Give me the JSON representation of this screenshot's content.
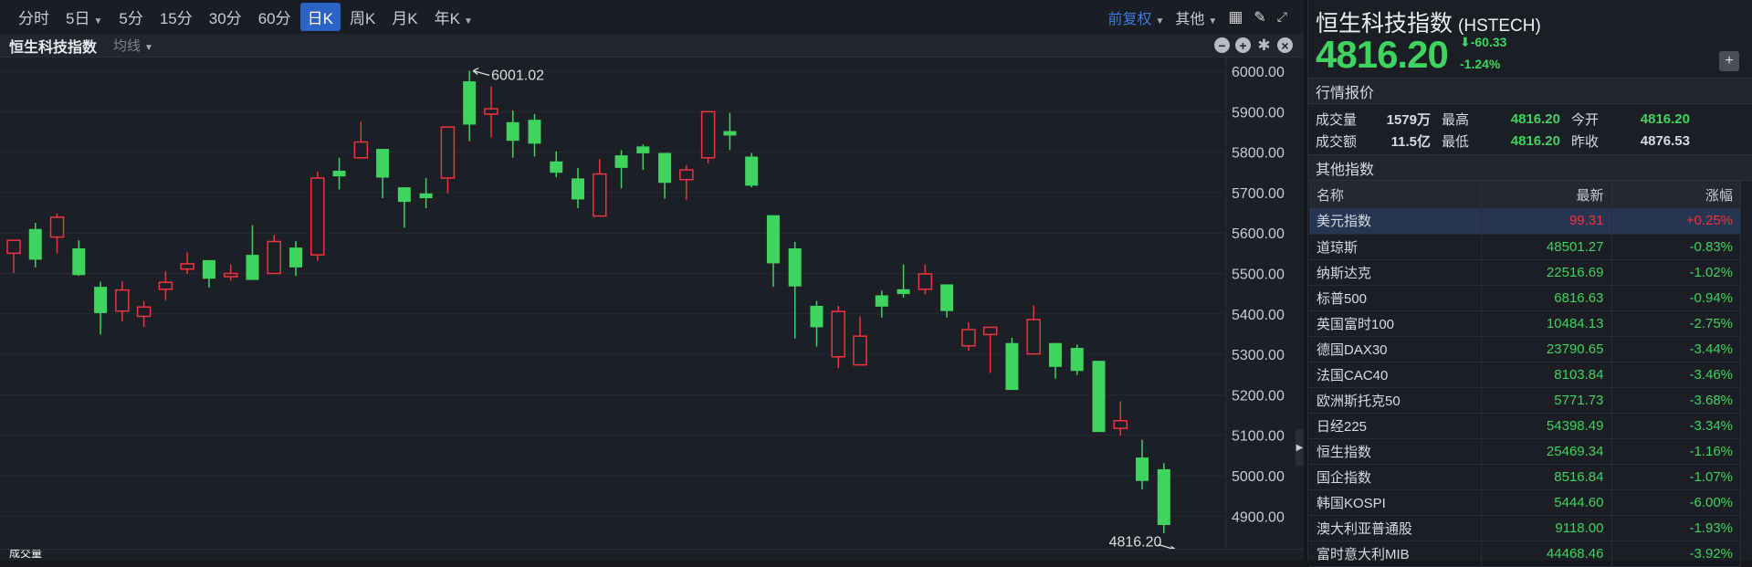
{
  "toolbar": {
    "periods": [
      {
        "label": "分时"
      },
      {
        "label": "5日",
        "dropdown": true
      },
      {
        "label": "5分"
      },
      {
        "label": "15分"
      },
      {
        "label": "30分"
      },
      {
        "label": "60分"
      },
      {
        "label": "日K",
        "active": true
      },
      {
        "label": "周K"
      },
      {
        "label": "月K"
      },
      {
        "label": "年K",
        "dropdown": true
      }
    ],
    "adjust": "前复权",
    "other": "其他"
  },
  "subbar": {
    "name": "恒生科技指数",
    "ma": "均线"
  },
  "volume_label": "成交量",
  "colors": {
    "up": "#f0323f",
    "down": "#3fd35f",
    "accent": "#2b63c6"
  },
  "chart_data": {
    "type": "candlestick",
    "ylim": [
      4800,
      6030
    ],
    "yticks": [
      "6000.00",
      "5900.00",
      "5800.00",
      "5700.00",
      "5600.00",
      "5500.00",
      "5400.00",
      "5300.00",
      "5200.00",
      "5100.00",
      "5000.00",
      "4900.00"
    ],
    "grid": true,
    "candles_ohlc": [
      [
        5550,
        5582,
        5501,
        5582
      ],
      [
        5610,
        5625,
        5515,
        5534
      ],
      [
        5590,
        5648,
        5550,
        5639
      ],
      [
        5562,
        5582,
        5494,
        5496
      ],
      [
        5467,
        5480,
        5349,
        5402
      ],
      [
        5407,
        5480,
        5381,
        5459
      ],
      [
        5394,
        5432,
        5368,
        5417
      ],
      [
        5461,
        5505,
        5434,
        5478
      ],
      [
        5511,
        5552,
        5499,
        5524
      ],
      [
        5533,
        5533,
        5465,
        5487
      ],
      [
        5492,
        5522,
        5482,
        5500
      ],
      [
        5546,
        5619,
        5484,
        5484
      ],
      [
        5500,
        5595,
        5500,
        5579
      ],
      [
        5564,
        5580,
        5494,
        5515
      ],
      [
        5546,
        5752,
        5531,
        5736
      ],
      [
        5754,
        5786,
        5708,
        5740
      ],
      [
        5786,
        5875,
        5784,
        5825
      ],
      [
        5808,
        5808,
        5686,
        5737
      ],
      [
        5713,
        5713,
        5613,
        5677
      ],
      [
        5698,
        5736,
        5661,
        5686
      ],
      [
        5736,
        5862,
        5698,
        5862
      ],
      [
        5975,
        6001.02,
        5827,
        5868
      ],
      [
        5894,
        5962,
        5836,
        5907
      ],
      [
        5874,
        5903,
        5786,
        5828
      ],
      [
        5880,
        5894,
        5789,
        5821
      ],
      [
        5777,
        5802,
        5738,
        5749
      ],
      [
        5735,
        5761,
        5661,
        5683
      ],
      [
        5642,
        5783,
        5642,
        5746
      ],
      [
        5792,
        5805,
        5710,
        5761
      ],
      [
        5814,
        5819,
        5756,
        5797
      ],
      [
        5798,
        5798,
        5685,
        5724
      ],
      [
        5732,
        5768,
        5682,
        5756
      ],
      [
        5786,
        5900,
        5772,
        5900
      ],
      [
        5852,
        5897,
        5805,
        5841
      ],
      [
        5789,
        5798,
        5713,
        5717
      ],
      [
        5644,
        5644,
        5467,
        5525
      ],
      [
        5562,
        5578,
        5339,
        5468
      ],
      [
        5420,
        5432,
        5319,
        5367
      ],
      [
        5294,
        5420,
        5266,
        5406
      ],
      [
        5274,
        5394,
        5274,
        5345
      ],
      [
        5446,
        5458,
        5391,
        5418
      ],
      [
        5461,
        5522,
        5440,
        5449
      ],
      [
        5461,
        5522,
        5449,
        5499
      ],
      [
        5473,
        5473,
        5391,
        5407
      ],
      [
        5321,
        5379,
        5309,
        5361
      ],
      [
        5349,
        5367,
        5254,
        5367
      ],
      [
        5328,
        5341,
        5212,
        5212
      ],
      [
        5301,
        5421,
        5301,
        5386
      ],
      [
        5328,
        5328,
        5240,
        5269
      ],
      [
        5316,
        5324,
        5249,
        5259
      ],
      [
        5284,
        5284,
        5108,
        5108
      ],
      [
        5117,
        5184,
        5099,
        5136
      ],
      [
        5045,
        5089,
        4966,
        4987
      ],
      [
        5016,
        5031,
        4858,
        4878
      ],
      [
        4816.2,
        4816.2,
        4816.2,
        4816.2
      ]
    ],
    "annotations": {
      "high": "6001.02",
      "high_value": 6001.02,
      "last": "4816.20",
      "last_value": 4816.2
    }
  },
  "quote": {
    "name": "恒生科技指数",
    "code": "(HSTECH)",
    "price": "4816.20",
    "change": "-60.33",
    "change_pct": "-1.24%",
    "section_title": "行情报价",
    "stats": [
      {
        "l1": "成交量",
        "v1": "1579万",
        "l2": "最高",
        "v2": "4816.20",
        "l3": "今开",
        "v3": "4816.20"
      },
      {
        "l1": "成交额",
        "v1": "11.5亿",
        "l2": "最低",
        "v2": "4816.20",
        "l3": "昨收",
        "v3": "4876.53"
      }
    ]
  },
  "others": {
    "title": "其他指数",
    "headers": [
      "名称",
      "最新",
      "涨幅"
    ],
    "rows": [
      {
        "name": "美元指数",
        "last": "99.31",
        "chg": "+0.25%",
        "up": true
      },
      {
        "name": "道琼斯",
        "last": "48501.27",
        "chg": "-0.83%"
      },
      {
        "name": "纳斯达克",
        "last": "22516.69",
        "chg": "-1.02%"
      },
      {
        "name": "标普500",
        "last": "6816.63",
        "chg": "-0.94%"
      },
      {
        "name": "英国富时100",
        "last": "10484.13",
        "chg": "-2.75%"
      },
      {
        "name": "德国DAX30",
        "last": "23790.65",
        "chg": "-3.44%"
      },
      {
        "name": "法国CAC40",
        "last": "8103.84",
        "chg": "-3.46%"
      },
      {
        "name": "欧洲斯托克50",
        "last": "5771.73",
        "chg": "-3.68%"
      },
      {
        "name": "日经225",
        "last": "54398.49",
        "chg": "-3.34%"
      },
      {
        "name": "恒生指数",
        "last": "25469.34",
        "chg": "-1.16%"
      },
      {
        "name": "国企指数",
        "last": "8516.84",
        "chg": "-1.07%"
      },
      {
        "name": "韩国KOSPI",
        "last": "5444.60",
        "chg": "-6.00%"
      },
      {
        "name": "澳大利亚普通股",
        "last": "9118.00",
        "chg": "-1.93%"
      },
      {
        "name": "富时意大利MIB",
        "last": "44468.46",
        "chg": "-3.92%"
      }
    ]
  }
}
